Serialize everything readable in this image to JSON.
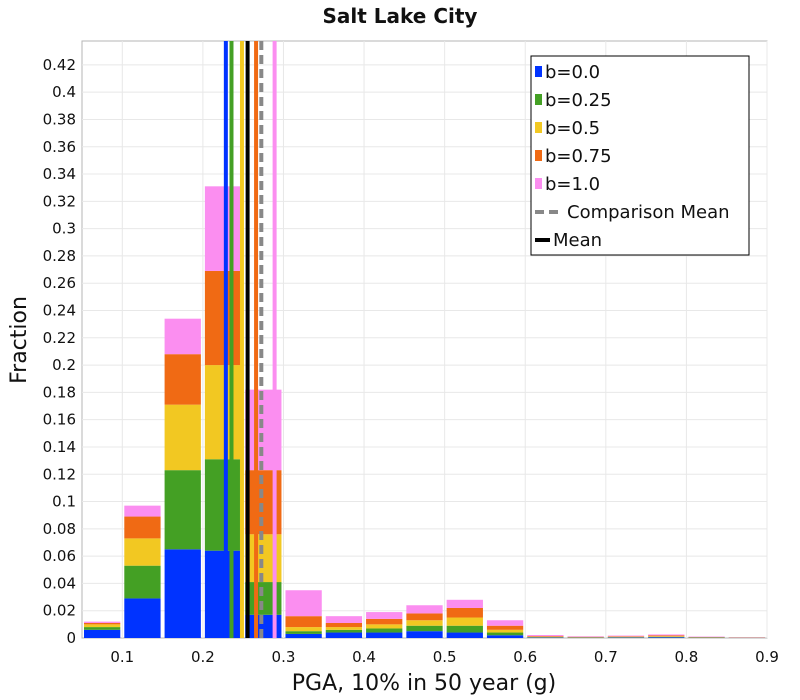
{
  "chart_data": {
    "type": "bar",
    "stacked": true,
    "title": "Salt Lake City",
    "xlabel": "PGA, 10% in 50 year (g)",
    "ylabel": "Fraction",
    "xlim": [
      0.05,
      0.9
    ],
    "ylim": [
      0,
      0.4375
    ],
    "x_ticks": [
      "0.1",
      "0.2",
      "0.3",
      "0.4",
      "0.5",
      "0.6",
      "0.7",
      "0.8",
      "0.9"
    ],
    "y_ticks": [
      "0",
      "0.02",
      "0.04",
      "0.06",
      "0.08",
      "0.1",
      "0.12",
      "0.14",
      "0.16",
      "0.18",
      "0.2",
      "0.22",
      "0.24",
      "0.26",
      "0.28",
      "0.3",
      "0.32",
      "0.34",
      "0.36",
      "0.38",
      "0.4",
      "0.42"
    ],
    "grid": true,
    "bin_width": 0.05,
    "bins": [
      0.075,
      0.125,
      0.175,
      0.225,
      0.275,
      0.325,
      0.375,
      0.425,
      0.475,
      0.525,
      0.575,
      0.625,
      0.675,
      0.725,
      0.775,
      0.825,
      0.875
    ],
    "series": [
      {
        "name": "b=0.0",
        "color": "#0033ff",
        "values": [
          0.006,
          0.029,
          0.065,
          0.064,
          0.017,
          0.003,
          0.004,
          0.004,
          0.005,
          0.004,
          0.002,
          0.0003,
          0.0002,
          0.0003,
          0.0005,
          0.0002,
          0.0001
        ]
      },
      {
        "name": "b=0.25",
        "color": "#44a024",
        "values": [
          0.002,
          0.024,
          0.058,
          0.067,
          0.024,
          0.002,
          0.002,
          0.003,
          0.004,
          0.005,
          0.002,
          0.0003,
          0.0002,
          0.0003,
          0.0004,
          0.0002,
          0.0001
        ]
      },
      {
        "name": "b=0.5",
        "color": "#f2c822",
        "values": [
          0.002,
          0.02,
          0.048,
          0.069,
          0.035,
          0.003,
          0.002,
          0.003,
          0.004,
          0.006,
          0.002,
          0.0003,
          0.0002,
          0.0003,
          0.0004,
          0.0002,
          0.0001
        ]
      },
      {
        "name": "b=0.75",
        "color": "#f06a14",
        "values": [
          0.001,
          0.016,
          0.037,
          0.069,
          0.047,
          0.008,
          0.003,
          0.004,
          0.005,
          0.007,
          0.003,
          0.0005,
          0.0003,
          0.0004,
          0.0006,
          0.0002,
          0.0001
        ]
      },
      {
        "name": "b=1.0",
        "color": "#fb8ef0",
        "values": [
          0.001,
          0.008,
          0.026,
          0.062,
          0.059,
          0.019,
          0.005,
          0.005,
          0.006,
          0.006,
          0.004,
          0.0008,
          0.0004,
          0.0005,
          0.0007,
          0.0003,
          0.0002
        ]
      }
    ],
    "vertical_lines": [
      {
        "series": "b=0.0",
        "x": 0.2285,
        "color": "#0033ff",
        "style": "solid"
      },
      {
        "series": "b=0.25",
        "x": 0.2355,
        "color": "#44a024",
        "style": "solid"
      },
      {
        "series": "b=0.5",
        "x": 0.2485,
        "color": "#f2c822",
        "style": "solid"
      },
      {
        "series": "b=0.75",
        "x": 0.266,
        "color": "#f06a14",
        "style": "solid"
      },
      {
        "series": "b=1.0",
        "x": 0.289,
        "color": "#fb8ef0",
        "style": "solid"
      },
      {
        "series": "Comparison Mean",
        "x": 0.2725,
        "color": "#888888",
        "style": "dashed"
      },
      {
        "series": "Mean",
        "x": 0.2555,
        "color": "#000000",
        "style": "solid"
      }
    ],
    "legend": {
      "placement": "top-right",
      "entries": [
        {
          "label": "b=0.0",
          "color": "#0033ff",
          "marker": "square"
        },
        {
          "label": "b=0.25",
          "color": "#44a024",
          "marker": "square"
        },
        {
          "label": "b=0.5",
          "color": "#f2c822",
          "marker": "square"
        },
        {
          "label": "b=0.75",
          "color": "#f06a14",
          "marker": "square"
        },
        {
          "label": "b=1.0",
          "color": "#fb8ef0",
          "marker": "square"
        },
        {
          "label": "Comparison Mean",
          "color": "#888888",
          "marker": "dashed-line"
        },
        {
          "label": "Mean",
          "color": "#000000",
          "marker": "line"
        }
      ]
    }
  }
}
